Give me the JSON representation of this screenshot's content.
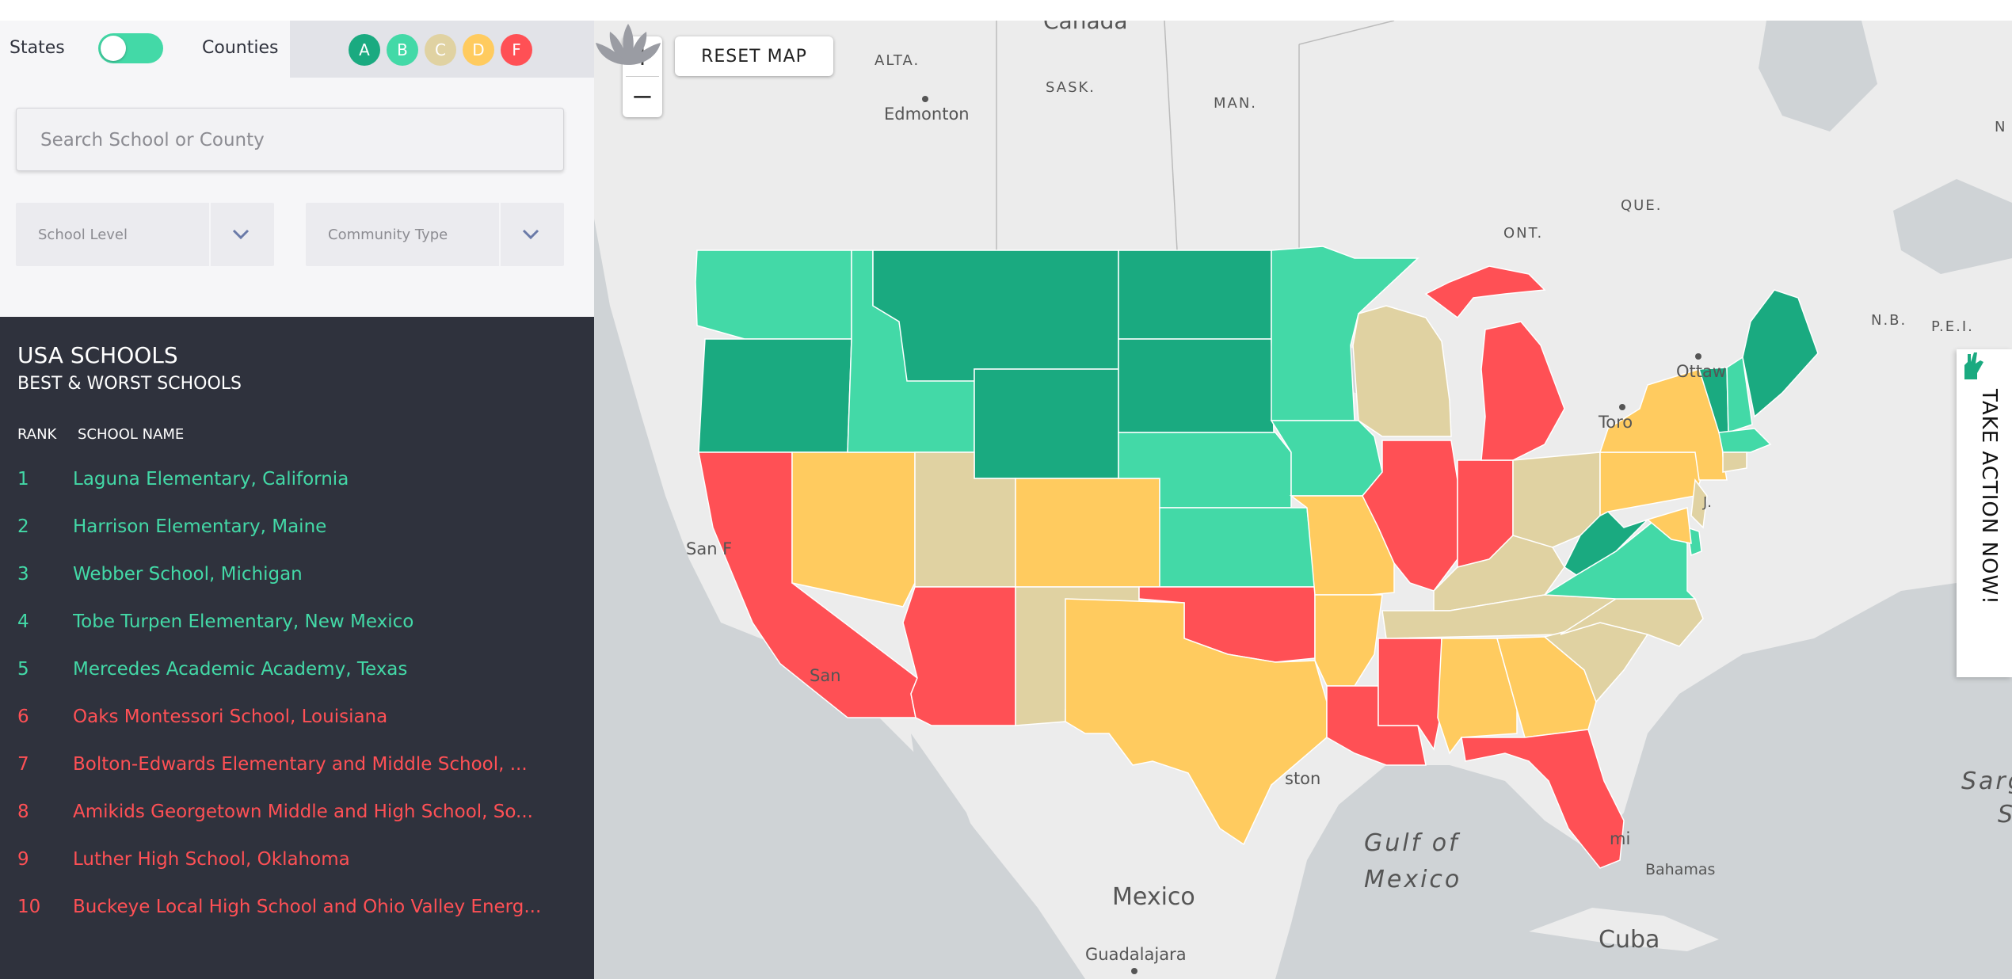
{
  "toggle": {
    "left_label": "States",
    "right_label": "Counties"
  },
  "grades": [
    {
      "label": "A",
      "color": "#1aaa80"
    },
    {
      "label": "B",
      "color": "#43d9a7"
    },
    {
      "label": "C",
      "color": "#e0d2a2"
    },
    {
      "label": "D",
      "color": "#ffcb5f"
    },
    {
      "label": "F",
      "color": "#ff5055"
    }
  ],
  "search": {
    "placeholder": "Search School or County"
  },
  "filters": {
    "school_level": "School Level",
    "community_type": "Community Type"
  },
  "list": {
    "title": "USA SCHOOLS",
    "subtitle": "BEST & WORST SCHOOLS",
    "col_rank": "RANK",
    "col_name": "SCHOOL NAME",
    "rows": [
      {
        "rank": "1",
        "name": "Laguna Elementary, California",
        "status": "good"
      },
      {
        "rank": "2",
        "name": "Harrison Elementary, Maine",
        "status": "good"
      },
      {
        "rank": "3",
        "name": "Webber School, Michigan",
        "status": "good"
      },
      {
        "rank": "4",
        "name": "Tobe Turpen Elementary, New Mexico",
        "status": "good"
      },
      {
        "rank": "5",
        "name": "Mercedes Academic Academy, Texas",
        "status": "good"
      },
      {
        "rank": "6",
        "name": "Oaks Montessori School, Louisiana",
        "status": "bad"
      },
      {
        "rank": "7",
        "name": "Bolton-Edwards Elementary and Middle School, ...",
        "status": "bad"
      },
      {
        "rank": "8",
        "name": "Amikids Georgetown Middle and High School, So...",
        "status": "bad"
      },
      {
        "rank": "9",
        "name": "Luther High School, Oklahoma",
        "status": "bad"
      },
      {
        "rank": "10",
        "name": "Buckeye Local High School and Ohio Valley Energ...",
        "status": "bad"
      }
    ]
  },
  "map_controls": {
    "zoom_in": "+",
    "zoom_out": "−",
    "reset": "RESET MAP"
  },
  "map_labels": {
    "canada": "Canada",
    "alta": "ALTA.",
    "sask": "SASK.",
    "man": "MAN.",
    "edmonton": "Edmonton",
    "ont": "ONT.",
    "que": "QUE.",
    "nb": "N.B.",
    "pei": "P.E.I.",
    "ottawa": "Ottaw",
    "toronto": "Toro",
    "n_edge": "N",
    "san_f": "San F",
    "san_d": "San",
    "houston": "ston",
    "miami": "mi",
    "gulf_1": "Gulf of",
    "gulf_2": "Mexico",
    "mexico": "Mexico",
    "guadalajara": "Guadalajara",
    "cuba": "Cuba",
    "bahamas": "Bahamas",
    "sargasso_1": "Sarg",
    "sargasso_2": "S",
    "nj": "J."
  },
  "take_action": "TAKE ACTION NOW!",
  "icons": [
    "chevron-down-icon",
    "lotus-logo-icon",
    "raised-hand-icon"
  ]
}
